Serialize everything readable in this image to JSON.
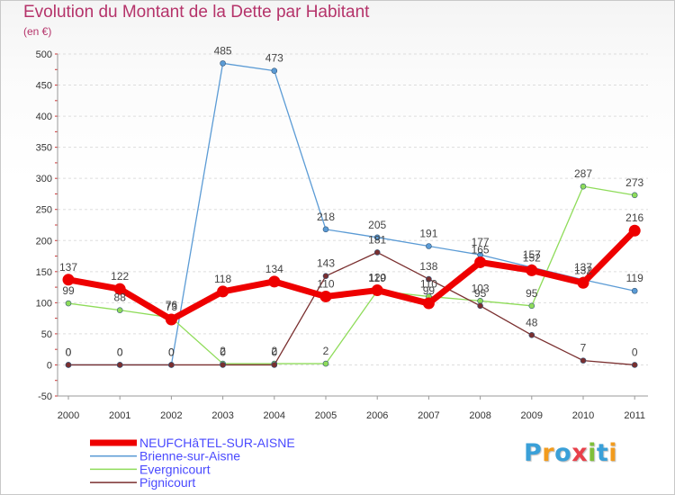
{
  "title": "Evolution du Montant de la Dette par Habitant",
  "subtitle": "(en €)",
  "logo": {
    "text": "Proxiti",
    "letters": [
      {
        "ch": "P",
        "color": "#3aa0d8"
      },
      {
        "ch": "r",
        "color": "#f29b1d"
      },
      {
        "ch": "o",
        "color": "#3aa0d8"
      },
      {
        "ch": "x",
        "color": "#e8404a"
      },
      {
        "ch": "i",
        "color": "#7fbf3a"
      },
      {
        "ch": "t",
        "color": "#3aa0d8"
      },
      {
        "ch": "i",
        "color": "#f29b1d"
      }
    ]
  },
  "chart_data": {
    "type": "line",
    "title": "Evolution du Montant de la Dette par Habitant",
    "ylabel": "(en €)",
    "xlabel": "",
    "categories": [
      "2000",
      "2001",
      "2002",
      "2003",
      "2004",
      "2005",
      "2006",
      "2007",
      "2008",
      "2009",
      "2010",
      "2011"
    ],
    "ylim": [
      -50,
      500
    ],
    "yticks": [
      -50,
      0,
      50,
      100,
      150,
      200,
      250,
      300,
      350,
      400,
      450,
      500
    ],
    "legend_position": "bottom-left",
    "series": [
      {
        "name": "Brienne-sur-Aisne",
        "color": "#5b9bd5",
        "values": [
          0,
          0,
          0,
          485,
          473,
          218,
          205,
          191,
          177,
          157,
          137,
          119
        ]
      },
      {
        "name": "Evergnicourt",
        "color": "#8fdc5a",
        "values": [
          99,
          88,
          76,
          2,
          2,
          2,
          119,
          110,
          103,
          95,
          287,
          273
        ]
      },
      {
        "name": "Pignicourt",
        "color": "#7a2f2f",
        "values": [
          0,
          0,
          0,
          0,
          0,
          143,
          181,
          138,
          95,
          48,
          7,
          0
        ]
      },
      {
        "name": "NEUFCHâTEL-SUR-AISNE",
        "color": "#ee0000",
        "values": [
          137,
          122,
          73,
          118,
          134,
          110,
          120,
          99,
          165,
          152,
          132,
          216
        ]
      }
    ]
  }
}
